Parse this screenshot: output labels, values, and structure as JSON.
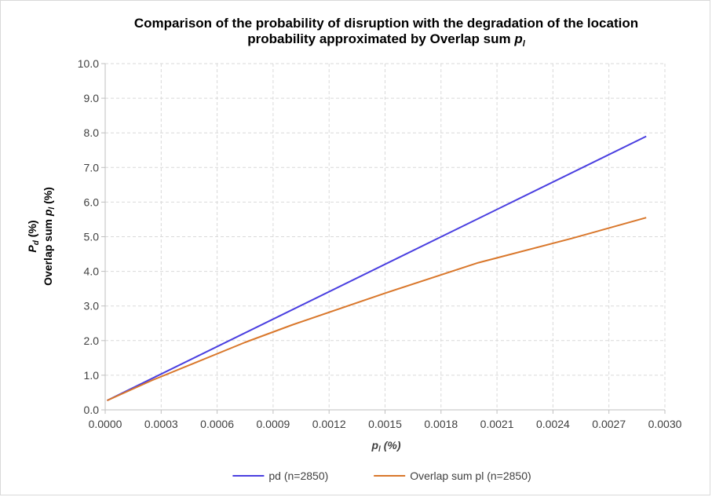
{
  "chart_data": {
    "type": "line",
    "title": "Comparison of the probability of disruption with the degradation of the location probability approximated by Overlap sum",
    "title_line1": "Comparison of the probability of disruption with the degradation of the location",
    "title_line2_prefix": "probability approximated by Overlap sum ",
    "title_line2_var": "p",
    "title_line2_sub": "l",
    "xlabel": "p",
    "xlabel_sub": "l",
    "xlabel_unit": " (%)",
    "ylabel_line1_var": "P",
    "ylabel_line1_sub": "d",
    "ylabel_line1_unit": " (%)",
    "ylabel_line2_prefix": "Overlap sum ",
    "ylabel_line2_var": "p",
    "ylabel_line2_sub": "l",
    "ylabel_line2_unit": " (%)",
    "xlim": [
      0,
      0.003
    ],
    "ylim": [
      0,
      10
    ],
    "x_ticks": [
      "0.0000",
      "0.0003",
      "0.0006",
      "0.0009",
      "0.0012",
      "0.0015",
      "0.0018",
      "0.0021",
      "0.0024",
      "0.0027",
      "0.0030"
    ],
    "y_ticks": [
      "0.0",
      "1.0",
      "2.0",
      "3.0",
      "4.0",
      "5.0",
      "6.0",
      "7.0",
      "8.0",
      "9.0",
      "10.0"
    ],
    "grid": true,
    "legend_position": "bottom",
    "series": [
      {
        "name": "pd (n=2850)",
        "color": "#4a3fe0",
        "x": [
          1e-05,
          0.0029
        ],
        "y": [
          0.27,
          7.9
        ]
      },
      {
        "name": "Overlap sum pl (n=2850)",
        "color": "#d9772b",
        "x": [
          1e-05,
          0.00025,
          0.0005,
          0.00075,
          0.001,
          0.0015,
          0.002,
          0.0025,
          0.0029
        ],
        "y": [
          0.27,
          0.85,
          1.4,
          1.95,
          2.45,
          3.37,
          4.25,
          4.95,
          5.55
        ]
      }
    ]
  }
}
